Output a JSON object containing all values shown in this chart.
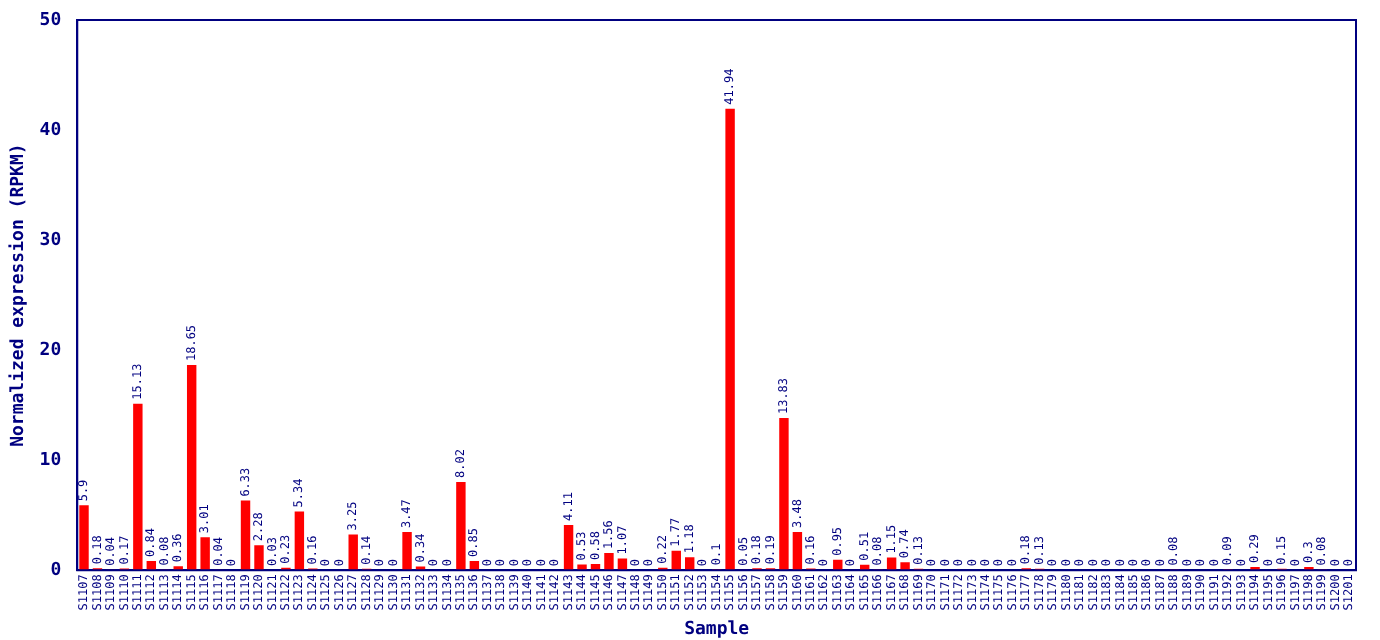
{
  "chart_data": {
    "type": "bar",
    "xlabel": "Sample",
    "ylabel": "Normalized expression (RPKM)",
    "categories": [
      "S1107",
      "S1108",
      "S1109",
      "S1110",
      "S1111",
      "S1112",
      "S1113",
      "S1114",
      "S1115",
      "S1116",
      "S1117",
      "S1118",
      "S1119",
      "S1120",
      "S1121",
      "S1122",
      "S1123",
      "S1124",
      "S1125",
      "S1126",
      "S1127",
      "S1128",
      "S1129",
      "S1130",
      "S1131",
      "S1132",
      "S1133",
      "S1134",
      "S1135",
      "S1136",
      "S1137",
      "S1138",
      "S1139",
      "S1140",
      "S1141",
      "S1142",
      "S1143",
      "S1144",
      "S1145",
      "S1146",
      "S1147",
      "S1148",
      "S1149",
      "S1150",
      "S1151",
      "S1152",
      "S1153",
      "S1154",
      "S1155",
      "S1156",
      "S1157",
      "S1158",
      "S1159",
      "S1160",
      "S1161",
      "S1162",
      "S1163",
      "S1164",
      "S1165",
      "S1166",
      "S1167",
      "S1168",
      "S1169",
      "S1170",
      "S1171",
      "S1172",
      "S1173",
      "S1174",
      "S1175",
      "S1176",
      "S1177",
      "S1178",
      "S1179",
      "S1180",
      "S1181",
      "S1182",
      "S1183",
      "S1184",
      "S1185",
      "S1186",
      "S1187",
      "S1188",
      "S1189",
      "S1190",
      "S1191",
      "S1192",
      "S1193",
      "S1194",
      "S1195",
      "S1196",
      "S1197",
      "S1198",
      "S1199",
      "S1200",
      "S1201"
    ],
    "values": [
      5.9,
      0.18,
      0.04,
      0.17,
      15.13,
      0.84,
      0.08,
      0.36,
      18.65,
      3.01,
      0.04,
      0,
      6.33,
      2.28,
      0.03,
      0.23,
      5.34,
      0.16,
      0,
      0,
      3.25,
      0.14,
      0,
      0,
      3.47,
      0.34,
      0,
      0,
      8.02,
      0.85,
      0,
      0,
      0,
      0,
      0,
      0,
      4.11,
      0.53,
      0.58,
      1.56,
      1.07,
      0,
      0,
      0.22,
      1.77,
      1.18,
      0,
      0.1,
      41.94,
      0.05,
      0.18,
      0.19,
      13.83,
      3.48,
      0.16,
      0,
      0.95,
      0,
      0.51,
      0.08,
      1.15,
      0.74,
      0.13,
      0,
      0,
      0,
      0,
      0,
      0,
      0,
      0.18,
      0.13,
      0,
      0,
      0,
      0,
      0,
      0,
      0,
      0,
      0,
      0.08,
      0,
      0,
      0,
      0.09,
      0,
      0.29,
      0,
      0.15,
      0,
      0.3,
      0.08,
      0,
      0
    ],
    "color": "#ff0000",
    "ylim": [
      0,
      50
    ],
    "yticks": [
      0,
      10,
      20,
      30,
      40,
      50
    ],
    "data_labels": true
  }
}
